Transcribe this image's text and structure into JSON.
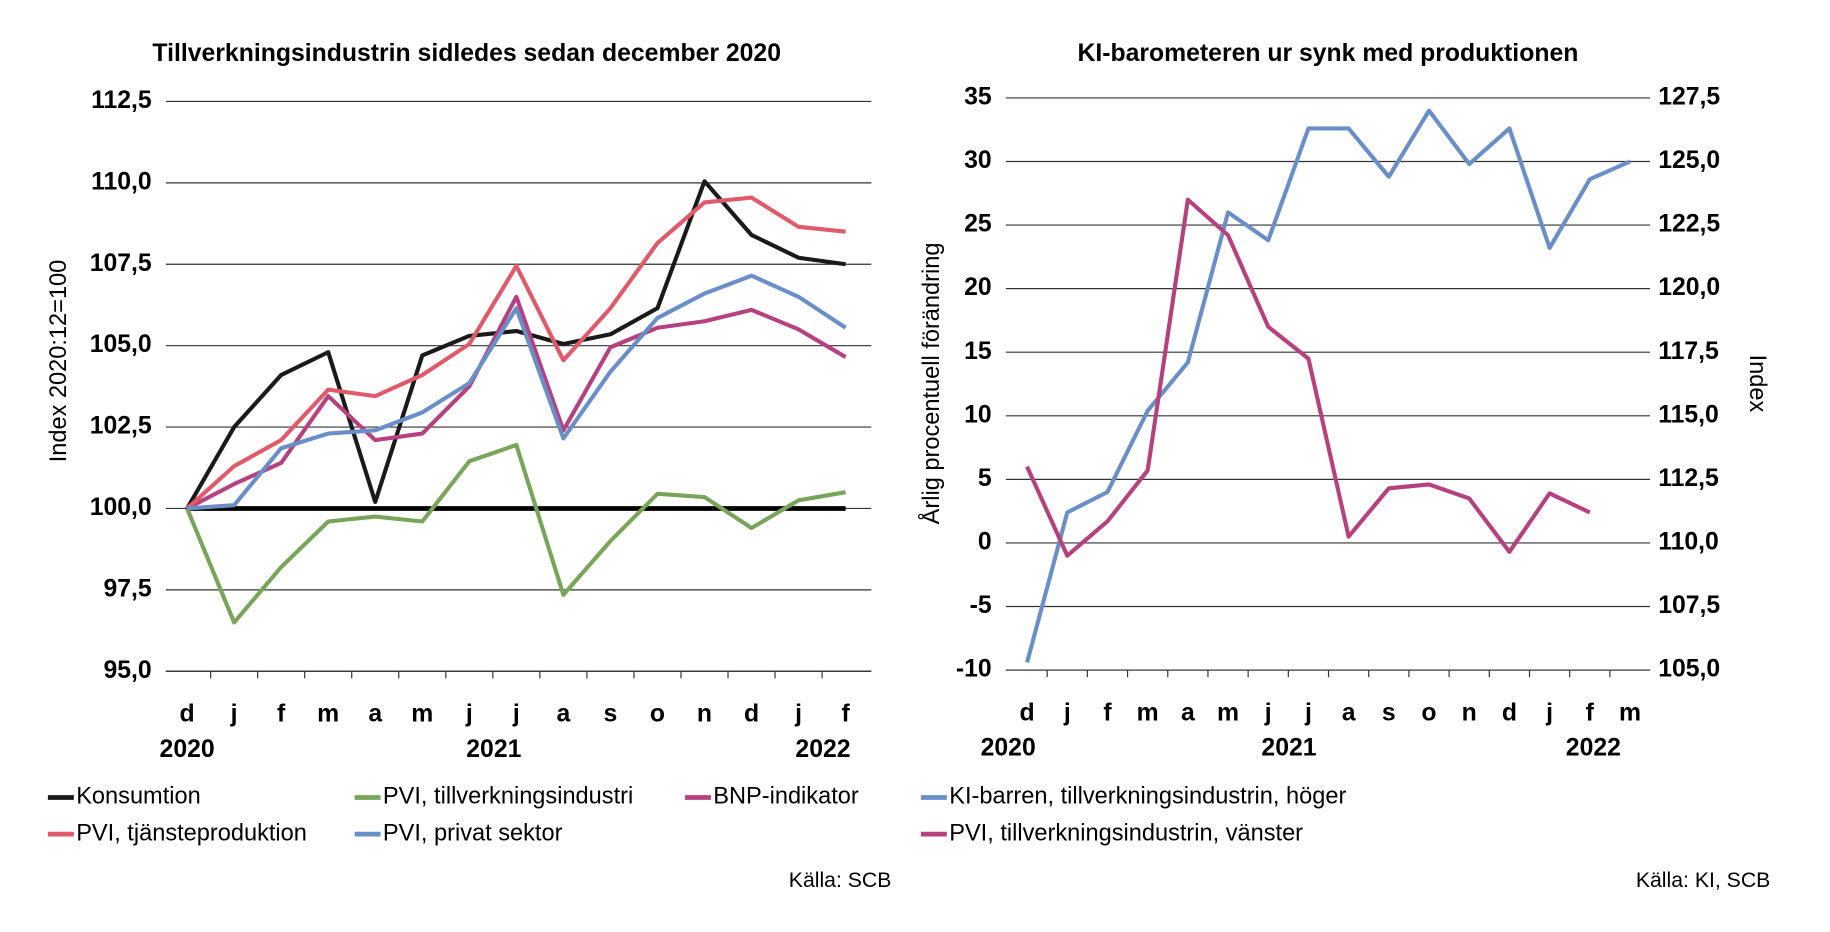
{
  "chart_data": [
    {
      "type": "line",
      "title": "Tillverkningsindustrin sidledes sedan december 2020",
      "y_label": "Index 2020:12=100",
      "source": "Källa: SCB",
      "categories": [
        "d",
        "j",
        "f",
        "m",
        "a",
        "m",
        "j",
        "j",
        "a",
        "s",
        "o",
        "n",
        "d",
        "j",
        "f"
      ],
      "years": [
        "2020",
        "2021",
        "2022"
      ],
      "ylim": [
        95,
        112.5
      ],
      "yticks": [
        {
          "value": 95,
          "label": "95,0"
        },
        {
          "value": 97.5,
          "label": "97,5"
        },
        {
          "value": 100,
          "label": "100,0"
        },
        {
          "value": 102.5,
          "label": "102,5"
        },
        {
          "value": 105,
          "label": "105,0"
        },
        {
          "value": 107.5,
          "label": "107,5"
        },
        {
          "value": 110,
          "label": "110,0"
        },
        {
          "value": 112.5,
          "label": "112,5"
        }
      ],
      "grid": true,
      "reference_line": 100,
      "series": [
        {
          "name": "Konsumtion",
          "color": "#1a1a1a",
          "values": [
            100,
            102.5,
            104.1,
            104.8,
            100.2,
            104.7,
            105.3,
            105.45,
            105.05,
            105.35,
            106.15,
            110.05,
            108.4,
            107.7,
            107.5
          ]
        },
        {
          "name": "PVI, tillverkningsindustri",
          "color": "#78a55a",
          "values": [
            100,
            96.5,
            98.2,
            99.6,
            99.75,
            99.6,
            101.45,
            101.95,
            97.35,
            99.0,
            100.45,
            100.35,
            99.4,
            100.25,
            100.5
          ]
        },
        {
          "name": "BNP-indikator",
          "color": "#b5427e",
          "values": [
            100,
            100.75,
            101.4,
            103.45,
            102.1,
            102.3,
            103.75,
            106.5,
            102.4,
            104.95,
            105.55,
            105.75,
            106.1,
            105.5,
            104.65
          ]
        },
        {
          "name": "PVI, tjänsteproduktion",
          "color": "#e05a6a",
          "values": [
            100,
            101.3,
            102.1,
            103.65,
            103.45,
            104.1,
            105.05,
            107.45,
            104.55,
            106.15,
            108.15,
            109.4,
            109.55,
            108.65,
            108.5
          ]
        },
        {
          "name": "PVI, privat sektor",
          "color": "#6a8fc8",
          "values": [
            100,
            100.1,
            101.85,
            102.3,
            102.4,
            102.95,
            103.85,
            106.15,
            102.15,
            104.2,
            105.85,
            106.6,
            107.15,
            106.5,
            105.55
          ]
        }
      ]
    },
    {
      "type": "line",
      "title": "KI-barometeren ur synk med produktionen",
      "y_label": "Årlig procentuell förändring",
      "y2_label": "Index",
      "source": "Källa: KI, SCB",
      "categories": [
        "d",
        "j",
        "f",
        "m",
        "a",
        "m",
        "j",
        "j",
        "a",
        "s",
        "o",
        "n",
        "d",
        "j",
        "f",
        "m"
      ],
      "years": [
        "2020",
        "2021",
        "2022"
      ],
      "ylim": [
        -10,
        35
      ],
      "yticks": [
        -10,
        -5,
        0,
        5,
        10,
        15,
        20,
        25,
        30,
        35
      ],
      "y2lim": [
        105,
        127.5
      ],
      "y2ticks": [
        {
          "value": 105,
          "label": "105,0"
        },
        {
          "value": 107.5,
          "label": "107,5"
        },
        {
          "value": 110,
          "label": "110,0"
        },
        {
          "value": 112.5,
          "label": "112,5"
        },
        {
          "value": 115,
          "label": "115,0"
        },
        {
          "value": 117.5,
          "label": "117,5"
        },
        {
          "value": 120,
          "label": "120,0"
        },
        {
          "value": 122.5,
          "label": "122,5"
        },
        {
          "value": 125,
          "label": "125,0"
        },
        {
          "value": 127.5,
          "label": "127,5"
        }
      ],
      "grid": true,
      "series": [
        {
          "name": "KI-barren, tillverkningsindustrin, höger",
          "color": "#6a8fc8",
          "axis": "y2",
          "values": [
            105.3,
            111.2,
            112.0,
            115.2,
            117.1,
            123.0,
            121.9,
            126.3,
            126.3,
            124.4,
            127.0,
            124.9,
            126.3,
            121.6,
            124.3,
            125.0
          ]
        },
        {
          "name": "PVI, tillverkningsindustrin, vänster",
          "color": "#b5427e",
          "values": [
            6,
            -1,
            1.7,
            5.7,
            27,
            24.2,
            17,
            14.5,
            0.5,
            4.3,
            4.6,
            3.5,
            -0.7,
            3.9,
            2.4,
            null
          ]
        }
      ]
    }
  ]
}
